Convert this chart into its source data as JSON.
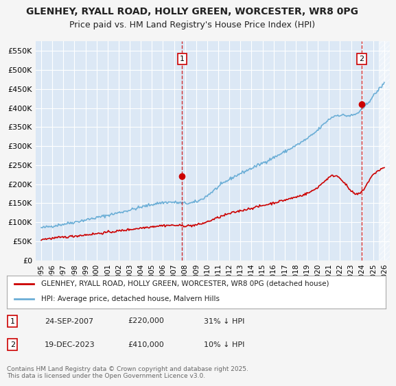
{
  "title_line1": "GLENHEY, RYALL ROAD, HOLLY GREEN, WORCESTER, WR8 0PG",
  "title_line2": "Price paid vs. HM Land Registry's House Price Index (HPI)",
  "ylabel": "",
  "ylim": [
    0,
    575000
  ],
  "yticks": [
    0,
    50000,
    100000,
    150000,
    200000,
    250000,
    300000,
    350000,
    400000,
    450000,
    500000,
    550000
  ],
  "ytick_labels": [
    "£0",
    "£50K",
    "£100K",
    "£150K",
    "£200K",
    "£250K",
    "£300K",
    "£350K",
    "£400K",
    "£450K",
    "£500K",
    "£550K"
  ],
  "xlim_start": 1994.5,
  "xlim_end": 2026.5,
  "xticks": [
    1995,
    1996,
    1997,
    1998,
    1999,
    2000,
    2001,
    2002,
    2003,
    2004,
    2005,
    2006,
    2007,
    2008,
    2009,
    2010,
    2011,
    2012,
    2013,
    2014,
    2015,
    2016,
    2017,
    2018,
    2019,
    2020,
    2021,
    2022,
    2023,
    2024,
    2025,
    2026
  ],
  "bg_color": "#e8f0f8",
  "plot_bg_color": "#dce8f5",
  "grid_color": "#ffffff",
  "hpi_color": "#6baed6",
  "price_color": "#cc0000",
  "sale1_date": 2007.73,
  "sale1_price": 220000,
  "sale2_date": 2023.96,
  "sale2_price": 410000,
  "legend_label1": "GLENHEY, RYALL ROAD, HOLLY GREEN, WORCESTER, WR8 0PG (detached house)",
  "legend_label2": "HPI: Average price, detached house, Malvern Hills",
  "annotation1_label": "1",
  "annotation1_date": "24-SEP-2007",
  "annotation1_price": "£220,000",
  "annotation1_hpi": "31% ↓ HPI",
  "annotation2_label": "2",
  "annotation2_date": "19-DEC-2023",
  "annotation2_price": "£410,000",
  "annotation2_hpi": "10% ↓ HPI",
  "footer": "Contains HM Land Registry data © Crown copyright and database right 2025.\nThis data is licensed under the Open Government Licence v3.0."
}
